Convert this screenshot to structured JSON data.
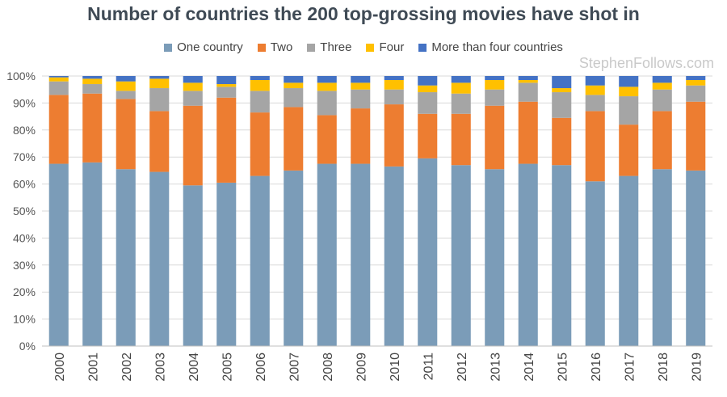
{
  "chart_data": {
    "type": "bar",
    "stacked": true,
    "title": "Number of countries the 200 top-grossing movies have shot in",
    "watermark": "StephenFollows.com",
    "categories": [
      "2000",
      "2001",
      "2002",
      "2003",
      "2004",
      "2005",
      "2006",
      "2007",
      "2008",
      "2009",
      "2010",
      "2011",
      "2012",
      "2013",
      "2014",
      "2015",
      "2016",
      "2017",
      "2018",
      "2019"
    ],
    "ylim": [
      0,
      100
    ],
    "yticks": [
      "0%",
      "10%",
      "20%",
      "30%",
      "40%",
      "50%",
      "60%",
      "70%",
      "80%",
      "90%",
      "100%"
    ],
    "xlabel": "",
    "ylabel": "",
    "legend_position": "top",
    "series": [
      {
        "name": "One country",
        "color": "#7b9cb8",
        "values": [
          67.5,
          68,
          65.5,
          64.5,
          59.5,
          60.5,
          63,
          65,
          67.5,
          67.5,
          66.5,
          69.5,
          67,
          65.5,
          67.5,
          67,
          61,
          63,
          65.5,
          65
        ]
      },
      {
        "name": "Two",
        "color": "#ed7d31",
        "values": [
          25.5,
          25.5,
          26,
          22.5,
          29.5,
          31.5,
          23.5,
          23.5,
          18,
          20.5,
          23,
          16.5,
          19,
          23.5,
          23,
          17.5,
          26,
          19,
          21.5,
          25.5
        ]
      },
      {
        "name": "Three",
        "color": "#a5a5a5",
        "values": [
          5,
          3.5,
          3,
          8.5,
          5.5,
          4,
          8,
          7,
          9,
          7,
          5.5,
          8,
          7.5,
          6,
          7,
          9.5,
          6,
          10.5,
          8,
          6
        ]
      },
      {
        "name": "Four",
        "color": "#ffc000",
        "values": [
          1.5,
          2,
          3.5,
          3.5,
          3,
          1,
          4,
          2,
          3,
          2.5,
          3.5,
          2.5,
          4,
          3.5,
          1,
          1.5,
          3.5,
          3.5,
          2.5,
          2
        ]
      },
      {
        "name": "More than four countries",
        "color": "#4472c4",
        "values": [
          0.5,
          1,
          2,
          1,
          2.5,
          3,
          1.5,
          2.5,
          2.5,
          2.5,
          1.5,
          3.5,
          2.5,
          1.5,
          1.5,
          4.5,
          3.5,
          4,
          2.5,
          1.5
        ]
      }
    ]
  }
}
